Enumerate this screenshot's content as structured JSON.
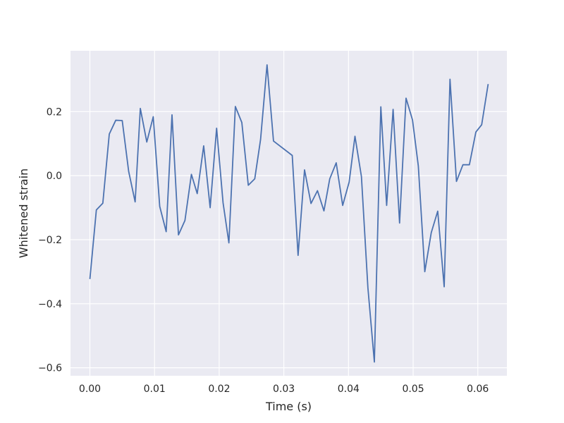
{
  "chart_data": {
    "type": "line",
    "title": "",
    "xlabel": "Time (s)",
    "ylabel": "Whitened strain",
    "xlim": [
      -0.003,
      0.0645
    ],
    "ylim": [
      -0.625,
      0.39
    ],
    "xticks": [
      0.0,
      0.01,
      0.02,
      0.03,
      0.04,
      0.05,
      0.06
    ],
    "xtick_labels": [
      "0.00",
      "0.01",
      "0.02",
      "0.03",
      "0.04",
      "0.05",
      "0.06"
    ],
    "yticks": [
      -0.6,
      -0.4,
      -0.2,
      0.0,
      0.2
    ],
    "ytick_labels": [
      "−0.6",
      "−0.4",
      "−0.2",
      "0.0",
      "0.2"
    ],
    "grid": true,
    "legend": "none",
    "colors": {
      "background": "#EAEAF2",
      "grid": "#FFFFFF",
      "line": "#4C72B0"
    },
    "series": [
      {
        "x": [
          0.0,
          0.001,
          0.002,
          0.003,
          0.004,
          0.005,
          0.006,
          0.007,
          0.0078,
          0.0088,
          0.0098,
          0.0108,
          0.0118,
          0.0127,
          0.0137,
          0.0147,
          0.0157,
          0.0166,
          0.0176,
          0.0186,
          0.0196,
          0.0206,
          0.0215,
          0.0225,
          0.0235,
          0.0245,
          0.0255,
          0.0264,
          0.0274,
          0.0284,
          0.0313,
          0.0322,
          0.0332,
          0.0342,
          0.0352,
          0.0362,
          0.0371,
          0.0381,
          0.0391,
          0.0401,
          0.041,
          0.042,
          0.043,
          0.044,
          0.045,
          0.0459,
          0.0469,
          0.0479,
          0.0489,
          0.0499,
          0.0508,
          0.0518,
          0.0528,
          0.0538,
          0.0548,
          0.0557,
          0.0567,
          0.0577,
          0.0587,
          0.0597,
          0.0606,
          0.0616
        ],
        "y": [
          -0.323,
          -0.107,
          -0.086,
          0.13,
          0.173,
          0.172,
          0.013,
          -0.082,
          0.21,
          0.105,
          0.184,
          -0.096,
          -0.175,
          0.19,
          -0.185,
          -0.14,
          0.004,
          -0.056,
          0.093,
          -0.1,
          0.148,
          -0.085,
          -0.21,
          0.216,
          0.166,
          -0.03,
          -0.01,
          0.113,
          0.346,
          0.108,
          0.063,
          -0.249,
          0.018,
          -0.087,
          -0.047,
          -0.11,
          -0.01,
          0.04,
          -0.093,
          -0.02,
          0.123,
          -0.003,
          -0.35,
          -0.582,
          0.215,
          -0.093,
          0.207,
          -0.148,
          0.242,
          0.174,
          0.03,
          -0.3,
          -0.178,
          -0.111,
          -0.347,
          0.301,
          -0.018,
          0.034,
          0.034,
          0.136,
          0.159,
          0.286
        ]
      }
    ]
  }
}
